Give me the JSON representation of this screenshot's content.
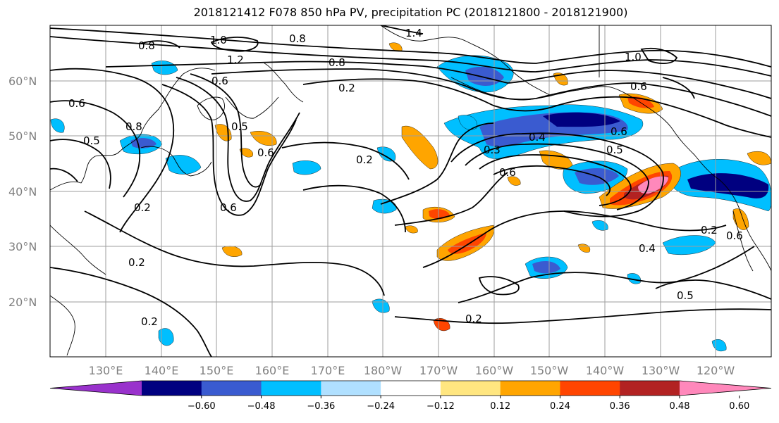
{
  "title": "2018121412 F078 850 hPa PV, precipitation PC (2018121800 - 2018121900)",
  "lat_labels": [
    "60°N",
    "50°N",
    "40°N",
    "30°N",
    "20°N"
  ],
  "lon_labels": [
    "130°E",
    "140°E",
    "150°E",
    "160°E",
    "170°E",
    "180°W",
    "170°W",
    "160°W",
    "150°W",
    "140°W",
    "130°W",
    "120°W"
  ],
  "colorbar": {
    "ticks": [
      "−0.60",
      "−0.48",
      "−0.36",
      "−0.24",
      "−0.12",
      "0.12",
      "0.24",
      "0.36",
      "0.48",
      "0.60"
    ],
    "colors": [
      "#9932cc",
      "#000080",
      "#3a5bd0",
      "#00bfff",
      "#b0e0ff",
      "#ffffff",
      "#ffe680",
      "#ffa500",
      "#ff4500",
      "#b22222",
      "#ff88bb"
    ]
  },
  "contour_labels": {
    "c1": "0.8",
    "c2": "1.0",
    "c3": "0.8",
    "c4": "1.4",
    "c5": "1.2",
    "c6": "0.8",
    "c7": "0.2",
    "c8": "0.6",
    "c9": "0.6",
    "c10": "0.5",
    "c11": "0.8",
    "c12": "0.5",
    "c13": "0.6",
    "c14": "0.2",
    "c15": "0.2",
    "c16": "0.6",
    "c17": "0.2",
    "c18": "0.3",
    "c19": "0.4",
    "c20": "0.6",
    "c21": "0.6",
    "c22": "0.5",
    "c23": "1.0",
    "c24": "0.6",
    "c25": "0.4",
    "c26": "0.5",
    "c27": "0.2",
    "c28": "0.2",
    "c29": "0.2",
    "c30": "0.6"
  }
}
